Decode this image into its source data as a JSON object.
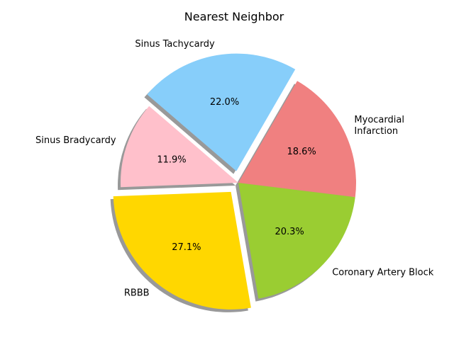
{
  "chart_data": {
    "type": "pie",
    "title": "Nearest Neighbor",
    "start_angle_deg": 60,
    "counterclockwise": true,
    "shadow": true,
    "slices": [
      {
        "label": "Sinus Tachycardy",
        "value": 22.0,
        "pct_text": "22.0%",
        "color": "#87CEFA",
        "explode": 0.1
      },
      {
        "label": "Sinus Bradycardy",
        "value": 11.9,
        "pct_text": "11.9%",
        "color": "#FFC0CB",
        "explode": 0.0
      },
      {
        "label": "RBBB",
        "value": 27.1,
        "pct_text": "27.1%",
        "color": "#FFD700",
        "explode": 0.1
      },
      {
        "label": "Coronary Artery Block",
        "value": 20.3,
        "pct_text": "20.3%",
        "color": "#9ACD32",
        "explode": 0.0
      },
      {
        "label": "Myocardial\nInfarction",
        "value": 18.6,
        "pct_text": "18.6%",
        "color": "#F08080",
        "explode": 0.0
      }
    ]
  }
}
